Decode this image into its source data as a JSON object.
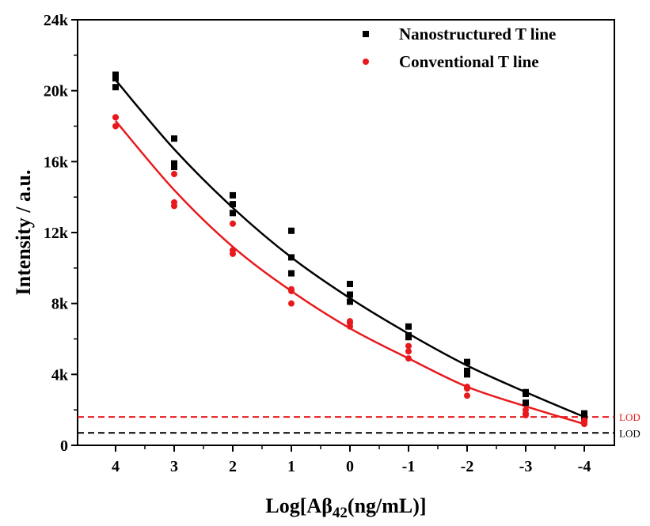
{
  "chart_data": {
    "type": "scatter",
    "xlabel_main": "Log[Aβ",
    "xlabel_sub": "42",
    "xlabel_tail": "(ng/mL)]",
    "ylabel": "Intensity / a.u.",
    "x_ticks": [
      4,
      3,
      2,
      1,
      0,
      -1,
      -2,
      -3,
      -4
    ],
    "x_tick_labels": [
      "4",
      "3",
      "2",
      "1",
      "0",
      "-1",
      "-2",
      "-3",
      "-4"
    ],
    "x_reversed": true,
    "xlim": [
      4.4,
      -4.5
    ],
    "y_ticks": [
      0,
      4000,
      8000,
      12000,
      16000,
      20000,
      24000
    ],
    "y_tick_labels": [
      "0",
      "4k",
      "8k",
      "12k",
      "16k",
      "20k",
      "24k"
    ],
    "ylim": [
      0,
      24000
    ],
    "legend_position": "top-right",
    "series": [
      {
        "name": "Nanostructured T line",
        "color": "#000000",
        "marker": "square",
        "points": [
          [
            4,
            20900
          ],
          [
            4,
            20700
          ],
          [
            4,
            20200
          ],
          [
            3,
            17300
          ],
          [
            3,
            15900
          ],
          [
            3,
            15700
          ],
          [
            2,
            14100
          ],
          [
            2,
            13600
          ],
          [
            2,
            13100
          ],
          [
            1,
            12100
          ],
          [
            1,
            10600
          ],
          [
            1,
            9700
          ],
          [
            0,
            9100
          ],
          [
            0,
            8500
          ],
          [
            0,
            8100
          ],
          [
            -1,
            6700
          ],
          [
            -1,
            6200
          ],
          [
            -1,
            6100
          ],
          [
            -2,
            4700
          ],
          [
            -2,
            4200
          ],
          [
            -2,
            4000
          ],
          [
            -3,
            3000
          ],
          [
            -3,
            2900
          ],
          [
            -3,
            2400
          ],
          [
            -4,
            1800
          ],
          [
            -4,
            1600
          ],
          [
            -4,
            1500
          ]
        ],
        "fit": [
          [
            4,
            20600
          ],
          [
            3,
            16700
          ],
          [
            2,
            13400
          ],
          [
            1,
            10600
          ],
          [
            0,
            8300
          ],
          [
            -1,
            6300
          ],
          [
            -2,
            4500
          ],
          [
            -3,
            3000
          ],
          [
            -4,
            1600
          ]
        ]
      },
      {
        "name": "Conventional T line",
        "color": "#e8191c",
        "marker": "circle",
        "points": [
          [
            4,
            18500
          ],
          [
            4,
            18500
          ],
          [
            4,
            18000
          ],
          [
            3,
            15300
          ],
          [
            3,
            13700
          ],
          [
            3,
            13500
          ],
          [
            2,
            12500
          ],
          [
            2,
            11000
          ],
          [
            2,
            10800
          ],
          [
            1,
            8800
          ],
          [
            1,
            8700
          ],
          [
            1,
            8000
          ],
          [
            0,
            7000
          ],
          [
            0,
            6900
          ],
          [
            0,
            6700
          ],
          [
            -1,
            5600
          ],
          [
            -1,
            5300
          ],
          [
            -1,
            4900
          ],
          [
            -2,
            3300
          ],
          [
            -2,
            3200
          ],
          [
            -2,
            2800
          ],
          [
            -3,
            2000
          ],
          [
            -3,
            1800
          ],
          [
            -3,
            1700
          ],
          [
            -4,
            1400
          ],
          [
            -4,
            1300
          ],
          [
            -4,
            1200
          ]
        ],
        "fit": [
          [
            4,
            18300
          ],
          [
            3,
            14400
          ],
          [
            2,
            11200
          ],
          [
            1,
            8700
          ],
          [
            0,
            6600
          ],
          [
            -1,
            4900
          ],
          [
            -2,
            3300
          ],
          [
            -3,
            2200
          ],
          [
            -4,
            1200
          ]
        ]
      }
    ],
    "lod_lines": [
      {
        "label": "LOD",
        "value": 1600,
        "color": "#e8191c",
        "style": "dashed"
      },
      {
        "label": "LOD",
        "value": 700,
        "color": "#000000",
        "style": "dashed"
      }
    ]
  }
}
